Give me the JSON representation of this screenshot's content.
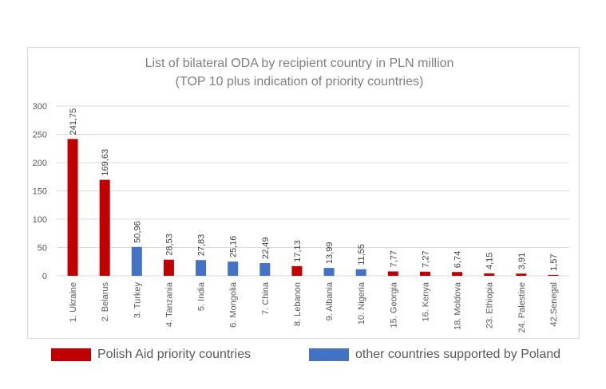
{
  "chart_data": {
    "type": "bar",
    "title": "List of bilateral ODA by recipient country in PLN million",
    "subtitle": "(TOP 10 plus indication of priority countries)",
    "categories": [
      "1. Ukraine",
      "2. Belarus",
      "3. Turkey",
      "4. Tanzania",
      "5. India",
      "6. Mongolia",
      "7. China",
      "8. Lebanon",
      "9. Albania",
      "10. Nigeria",
      "15. Georgia",
      "16. Kenya",
      "18. Moldova",
      "23. Ethiopia",
      "24. Palestine",
      "42.Senegal"
    ],
    "values": [
      241.75,
      169.63,
      50.96,
      28.53,
      27.83,
      25.16,
      22.49,
      17.13,
      13.99,
      11.55,
      7.77,
      7.27,
      6.74,
      4.15,
      3.91,
      1.57
    ],
    "value_labels": [
      "241,75",
      "169,63",
      "50,96",
      "28,53",
      "27,83",
      "25,16",
      "22,49",
      "17,13",
      "13,99",
      "11,55",
      "7,77",
      "7,27",
      "6,74",
      "4,15",
      "3,91",
      "1,57"
    ],
    "groups": [
      "priority",
      "priority",
      "other",
      "priority",
      "other",
      "other",
      "other",
      "priority",
      "other",
      "other",
      "priority",
      "priority",
      "priority",
      "priority",
      "priority",
      "priority"
    ],
    "ylim": [
      0,
      300
    ],
    "yticks": [
      "0",
      "50",
      "100",
      "150",
      "200",
      "250",
      "300"
    ],
    "grid": true,
    "legend_position": "bottom",
    "legend": [
      {
        "key": "priority",
        "label": "Polish Aid priority countries",
        "color": "#c00000"
      },
      {
        "key": "other",
        "label": "other countries supported by Poland",
        "color": "#4472c4"
      }
    ]
  }
}
